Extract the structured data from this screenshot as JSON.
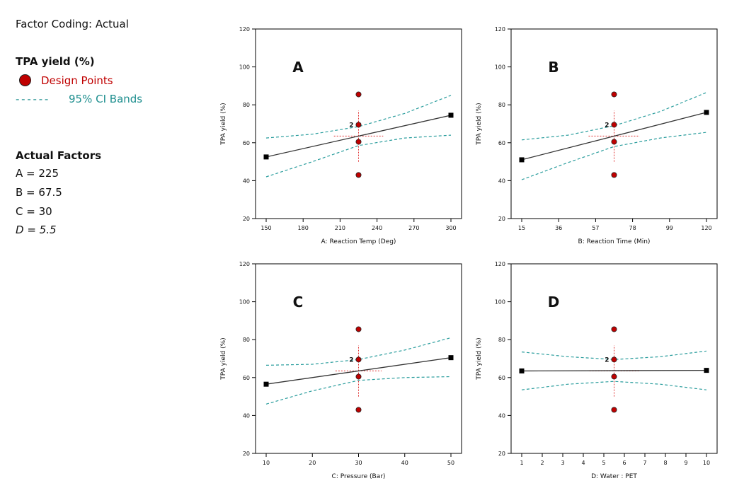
{
  "sidebar": {
    "factor_coding": "Factor Coding: Actual",
    "response_title": "TPA yield (%)",
    "legend_design_points": "Design Points",
    "legend_ci_dashes": "- - - - - -",
    "legend_ci_label": "95% CI Bands",
    "actual_factors_title": "Actual Factors",
    "factors": [
      "A = 225",
      "B = 67.5",
      "C = 30",
      "D = 5.5"
    ]
  },
  "colors": {
    "design_point": "#c00000",
    "ci_band": "#2a9d9d",
    "fit_line": "#333333",
    "lsd_bar": "#e03030",
    "frame": "#000000"
  },
  "chart_data": [
    {
      "type": "line",
      "panel_label": "A",
      "xlabel": "A: Reaction Temp (Deg)",
      "ylabel": "TPA yield (%)",
      "xlim": [
        150,
        300
      ],
      "ylim": [
        20,
        120
      ],
      "xticks": [
        150,
        180,
        210,
        240,
        270,
        300
      ],
      "yticks": [
        20,
        40,
        60,
        80,
        100,
        120
      ],
      "fit": {
        "x": [
          150,
          300
        ],
        "y": [
          52.5,
          74.5
        ]
      },
      "ci_upper": {
        "x": [
          150,
          187.5,
          225,
          262.5,
          300
        ],
        "y": [
          62.5,
          64.5,
          68.5,
          75.5,
          85
        ]
      },
      "ci_lower": {
        "x": [
          150,
          187.5,
          225,
          262.5,
          300
        ],
        "y": [
          42,
          50,
          58.5,
          62.5,
          64
        ]
      },
      "design_points": [
        {
          "x": 225,
          "y": 85.5,
          "label": ""
        },
        {
          "x": 225,
          "y": 69.5,
          "label": "2"
        },
        {
          "x": 225,
          "y": 60.5,
          "label": ""
        },
        {
          "x": 225,
          "y": 43,
          "label": ""
        }
      ],
      "lsd": {
        "x": 225,
        "y": 63.5,
        "x_range": [
          205,
          245
        ],
        "y_range": [
          50,
          77
        ]
      }
    },
    {
      "type": "line",
      "panel_label": "B",
      "xlabel": "B: Reaction  Time (Min)",
      "ylabel": "TPA yield (%)",
      "xlim": [
        15,
        120
      ],
      "ylim": [
        20,
        120
      ],
      "xticks": [
        15,
        36,
        57,
        78,
        99,
        120
      ],
      "yticks": [
        20,
        40,
        60,
        80,
        100,
        120
      ],
      "fit": {
        "x": [
          15,
          120
        ],
        "y": [
          51,
          76
        ]
      },
      "ci_upper": {
        "x": [
          15,
          41.25,
          67.5,
          93.75,
          120
        ],
        "y": [
          61.5,
          64,
          69,
          76.5,
          86.5
        ]
      },
      "ci_lower": {
        "x": [
          15,
          41.25,
          67.5,
          93.75,
          120
        ],
        "y": [
          40.5,
          49.5,
          58,
          62.5,
          65.5
        ]
      },
      "design_points": [
        {
          "x": 67.5,
          "y": 85.5,
          "label": ""
        },
        {
          "x": 67.5,
          "y": 69.5,
          "label": "2"
        },
        {
          "x": 67.5,
          "y": 60.5,
          "label": ""
        },
        {
          "x": 67.5,
          "y": 43,
          "label": ""
        }
      ],
      "lsd": {
        "x": 67.5,
        "y": 63.5,
        "x_range": [
          53,
          82
        ],
        "y_range": [
          50,
          77
        ]
      }
    },
    {
      "type": "line",
      "panel_label": "C",
      "xlabel": "C: Pressure (Bar)",
      "ylabel": "TPA yield (%)",
      "xlim": [
        10,
        50
      ],
      "ylim": [
        20,
        120
      ],
      "xticks": [
        10,
        20,
        30,
        40,
        50
      ],
      "yticks": [
        20,
        40,
        60,
        80,
        100,
        120
      ],
      "fit": {
        "x": [
          10,
          50
        ],
        "y": [
          56.5,
          70.5
        ]
      },
      "ci_upper": {
        "x": [
          10,
          20,
          30,
          40,
          50
        ],
        "y": [
          66.5,
          67,
          69.5,
          74.5,
          81
        ]
      },
      "ci_lower": {
        "x": [
          10,
          20,
          30,
          40,
          50
        ],
        "y": [
          46,
          53,
          58.5,
          60,
          60.5
        ]
      },
      "design_points": [
        {
          "x": 30,
          "y": 85.5,
          "label": ""
        },
        {
          "x": 30,
          "y": 69.5,
          "label": "2"
        },
        {
          "x": 30,
          "y": 60.5,
          "label": ""
        },
        {
          "x": 30,
          "y": 43,
          "label": ""
        }
      ],
      "lsd": {
        "x": 30,
        "y": 63.5,
        "x_range": [
          25,
          35
        ],
        "y_range": [
          50,
          77
        ]
      }
    },
    {
      "type": "line",
      "panel_label": "D",
      "xlabel": "D: Water : PET",
      "ylabel": "TPA yield (%)",
      "xlim": [
        1,
        10
      ],
      "ylim": [
        20,
        120
      ],
      "xticks": [
        1,
        2,
        3,
        4,
        5,
        6,
        7,
        8,
        9,
        10
      ],
      "yticks": [
        20,
        40,
        60,
        80,
        100,
        120
      ],
      "fit": {
        "x": [
          1,
          10
        ],
        "y": [
          63.5,
          63.8
        ]
      },
      "ci_upper": {
        "x": [
          1,
          3.25,
          5.5,
          7.75,
          10
        ],
        "y": [
          73.5,
          71,
          69.5,
          71,
          74
        ]
      },
      "ci_lower": {
        "x": [
          1,
          3.25,
          5.5,
          7.75,
          10
        ],
        "y": [
          53.5,
          56.5,
          58,
          56.5,
          53.5
        ]
      },
      "design_points": [
        {
          "x": 5.5,
          "y": 85.5,
          "label": ""
        },
        {
          "x": 5.5,
          "y": 69.5,
          "label": "2"
        },
        {
          "x": 5.5,
          "y": 60.5,
          "label": ""
        },
        {
          "x": 5.5,
          "y": 43,
          "label": ""
        }
      ],
      "lsd": {
        "x": 5.5,
        "y": 63.5,
        "x_range": [
          4.3,
          6.7
        ],
        "y_range": [
          50,
          77
        ]
      }
    }
  ]
}
